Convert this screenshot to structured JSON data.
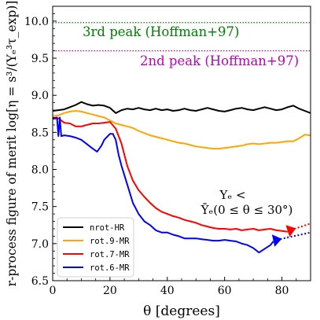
{
  "chart_data": {
    "type": "line",
    "xlabel": "θ [degrees]",
    "ylabel": "r-process figure of merit log[η = s³/(Yₑ³τ_exp)]",
    "xlim": [
      0,
      90
    ],
    "ylim": [
      6.5,
      10.2
    ],
    "xticks": [
      0,
      20,
      40,
      60,
      80
    ],
    "yticks": [
      6.5,
      7.0,
      7.5,
      8.0,
      8.5,
      9.0,
      9.5,
      10.0
    ],
    "xtick_labels": [
      "0",
      "20",
      "40",
      "60",
      "80"
    ],
    "ytick_labels": [
      "6.5",
      "7.0",
      "7.5",
      "8.0",
      "8.5",
      "9.0",
      "9.5",
      "10.0"
    ],
    "grid": false,
    "legend_position": "lower-left",
    "reference_lines": [
      {
        "label": "3rd peak (Hoffman+97)",
        "y": 9.98,
        "color": "#008000"
      },
      {
        "label": "2nd peak (Hoffman+97)",
        "y": 9.6,
        "color": "#bf00bf"
      }
    ],
    "annotation": {
      "line1": "Yₑ <",
      "line2": "Ȳₑ(0 ≤ θ ≤ 30°)"
    },
    "series": [
      {
        "name": "nrot-HR",
        "color": "#000000",
        "x": [
          0,
          2,
          4,
          6,
          8,
          10,
          12,
          14,
          16,
          18,
          20,
          22,
          24,
          26,
          28,
          30,
          32,
          34,
          36,
          38,
          40,
          42,
          44,
          46,
          48,
          50,
          52,
          54,
          56,
          58,
          60,
          62,
          64,
          66,
          68,
          70,
          72,
          74,
          76,
          78,
          80,
          82,
          84,
          86,
          88,
          90
        ],
        "y": [
          8.79,
          8.8,
          8.81,
          8.84,
          8.87,
          8.91,
          8.88,
          8.86,
          8.87,
          8.86,
          8.83,
          8.76,
          8.8,
          8.82,
          8.81,
          8.83,
          8.81,
          8.8,
          8.82,
          8.8,
          8.81,
          8.79,
          8.8,
          8.82,
          8.8,
          8.79,
          8.81,
          8.83,
          8.81,
          8.79,
          8.78,
          8.8,
          8.82,
          8.83,
          8.81,
          8.8,
          8.82,
          8.84,
          8.82,
          8.8,
          8.81,
          8.84,
          8.86,
          8.82,
          8.79,
          8.76
        ]
      },
      {
        "name": "rot.9-MR",
        "color": "#ffa500",
        "x": [
          0,
          2,
          4,
          6,
          8,
          10,
          12,
          14,
          16,
          18,
          20,
          22,
          24,
          26,
          28,
          30,
          32,
          34,
          36,
          38,
          40,
          42,
          44,
          46,
          48,
          50,
          52,
          54,
          56,
          58,
          60,
          62,
          64,
          66,
          68,
          70,
          72,
          74,
          76,
          78,
          80,
          82,
          84,
          86,
          88,
          90
        ],
        "y": [
          8.72,
          8.73,
          8.76,
          8.78,
          8.79,
          8.78,
          8.76,
          8.74,
          8.72,
          8.7,
          8.66,
          8.62,
          8.6,
          8.58,
          8.56,
          8.52,
          8.49,
          8.46,
          8.44,
          8.42,
          8.4,
          8.38,
          8.36,
          8.35,
          8.33,
          8.31,
          8.3,
          8.29,
          8.28,
          8.28,
          8.29,
          8.3,
          8.31,
          8.32,
          8.34,
          8.35,
          8.34,
          8.35,
          8.36,
          8.36,
          8.37,
          8.38,
          8.38,
          8.42,
          8.47,
          8.46
        ]
      },
      {
        "name": "rot.7-MR",
        "color": "#ff0000",
        "x": [
          0,
          2,
          4,
          6,
          8,
          10,
          12,
          14,
          16,
          18,
          20,
          22,
          24,
          26,
          28,
          30,
          32,
          34,
          36,
          38,
          40,
          42,
          44,
          46,
          48,
          50,
          52,
          54,
          56,
          58,
          60,
          62,
          64,
          66,
          68,
          70,
          72,
          74,
          76,
          78,
          80,
          82
        ],
        "y": [
          8.68,
          8.69,
          8.63,
          8.62,
          8.58,
          8.58,
          8.6,
          8.62,
          8.62,
          8.63,
          8.64,
          8.55,
          8.35,
          8.05,
          7.85,
          7.72,
          7.63,
          7.55,
          7.48,
          7.43,
          7.4,
          7.37,
          7.35,
          7.32,
          7.3,
          7.28,
          7.25,
          7.23,
          7.21,
          7.2,
          7.2,
          7.19,
          7.2,
          7.18,
          7.19,
          7.2,
          7.18,
          7.19,
          7.2,
          7.18,
          7.17,
          7.16
        ]
      },
      {
        "name": "rot.6-MR",
        "color": "#0000ff",
        "x": [
          0,
          1.5,
          2,
          2.5,
          3,
          4,
          6,
          8,
          10,
          12,
          14,
          15.5,
          17,
          18,
          20,
          21,
          22,
          23,
          24,
          26,
          28,
          30,
          32,
          34,
          36,
          38,
          40,
          42,
          44,
          46,
          48,
          50,
          52,
          54,
          56,
          58,
          60,
          62,
          64,
          66,
          68,
          70,
          72,
          74,
          76,
          77
        ],
        "y": [
          8.69,
          8.7,
          8.45,
          8.7,
          8.45,
          8.46,
          8.45,
          8.43,
          8.4,
          8.34,
          8.28,
          8.24,
          8.32,
          8.4,
          8.48,
          8.48,
          8.4,
          8.2,
          8.05,
          7.8,
          7.55,
          7.4,
          7.3,
          7.25,
          7.18,
          7.15,
          7.15,
          7.12,
          7.1,
          7.07,
          7.07,
          7.07,
          7.06,
          7.05,
          7.04,
          7.04,
          7.05,
          7.04,
          7.03,
          7.0,
          6.98,
          6.94,
          6.88,
          6.93,
          6.98,
          7.03
        ]
      }
    ],
    "extrapolations": [
      {
        "series": "rot.7-MR",
        "color": "#ff0000",
        "x": [
          82,
          90
        ],
        "y": [
          7.17,
          7.27
        ]
      },
      {
        "series": "rot.6-MR",
        "color": "#0000ff",
        "x": [
          77,
          90
        ],
        "y": [
          7.04,
          7.15
        ]
      }
    ]
  }
}
